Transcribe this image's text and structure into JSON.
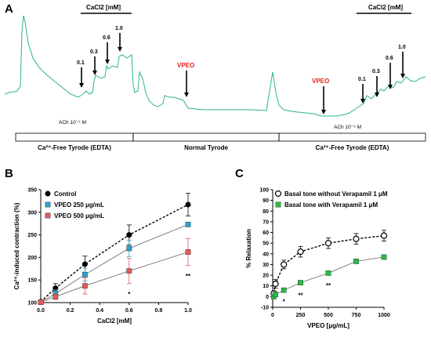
{
  "chart_data": [
    {
      "panel": "A",
      "type": "line",
      "trace_color": "#2bb58a",
      "annotations": {
        "cacl2_left": "CaCl2 [mM]",
        "cacl2_right": "CaCl2 [mM]",
        "vpeo_center": "VPEO",
        "vpeo_right": "VPEO",
        "vpeo_color": "#e8201e",
        "ach_left": "ACh 10⁻⁵ M",
        "ach_right": "ACh 10⁻⁵ M",
        "conc_left": [
          "0.1",
          "0.3",
          "0.6",
          "1.0"
        ],
        "conc_right": [
          "0.1",
          "0.3",
          "0.6",
          "1.0"
        ]
      },
      "segments": [
        "Ca²⁺-Free Tyrode (EDTA)",
        "Normal Tyrode",
        "Ca²⁺-Free Tyrode (EDTA)"
      ]
    },
    {
      "panel": "B",
      "type": "line",
      "xlabel": "CaCl2 [mM]",
      "ylabel": "Ca²⁺-induced contraction (%)",
      "xlim": [
        0,
        1.0
      ],
      "ylim": [
        100,
        350
      ],
      "x_ticks": [
        "0.0",
        "0.2",
        "0.4",
        "0.6",
        "0.8",
        "1.0"
      ],
      "y_ticks": [
        "100",
        "150",
        "200",
        "250",
        "300",
        "350"
      ],
      "x": [
        0,
        0.1,
        0.3,
        0.6,
        1.0
      ],
      "series": [
        {
          "name": "Control",
          "color": "#000000",
          "marker": "circle",
          "dashed": true,
          "values": [
            102,
            132,
            185,
            250,
            317
          ],
          "err": [
            3,
            10,
            18,
            22,
            25
          ]
        },
        {
          "name": "VPEO 250 μg/mL",
          "color": "#2f9fd0",
          "marker": "square",
          "dashed": false,
          "values": [
            101,
            120,
            162,
            220,
            273
          ],
          "err": [
            3,
            8,
            14,
            18,
            0
          ]
        },
        {
          "name": "VPEO 500 μg/mL",
          "color": "#e05a5a",
          "marker": "square",
          "dashed": false,
          "values": [
            101,
            113,
            137,
            170,
            212
          ],
          "err": [
            3,
            6,
            18,
            28,
            30
          ]
        }
      ],
      "significance": [
        {
          "x": 0.6,
          "label": "*"
        },
        {
          "x": 1.0,
          "label": "**"
        }
      ]
    },
    {
      "panel": "C",
      "type": "line",
      "xlabel": "VPEO [μg/mL]",
      "ylabel": "% Relaxation",
      "xlim": [
        0,
        1000
      ],
      "ylim": [
        -10,
        100
      ],
      "x_ticks": [
        "0",
        "250",
        "500",
        "750",
        "1000"
      ],
      "y_ticks": [
        "-10",
        "0",
        "10",
        "20",
        "30",
        "40",
        "50",
        "60",
        "70",
        "80",
        "90",
        "100"
      ],
      "x": [
        10,
        25,
        100,
        250,
        500,
        750,
        1000
      ],
      "series": [
        {
          "name": "Basal tone without Verapamil 1 μM",
          "color": "#000000",
          "marker": "open-circle",
          "dashed": true,
          "values": [
            3,
            12,
            30,
            42,
            50,
            54,
            57
          ],
          "err": [
            2,
            4,
            4,
            5,
            5,
            5,
            5
          ]
        },
        {
          "name": "Basal tone with Verapamil 1 μM",
          "color": "#2db84a",
          "marker": "square",
          "dashed": false,
          "values": [
            0,
            2,
            6,
            13,
            22,
            33,
            37
          ],
          "err": [
            1,
            1,
            1,
            2,
            2,
            2,
            2
          ]
        }
      ],
      "significance": [
        {
          "x": 100,
          "label": "*"
        },
        {
          "x": 250,
          "label": "**"
        },
        {
          "x": 500,
          "label": "**"
        }
      ]
    }
  ]
}
